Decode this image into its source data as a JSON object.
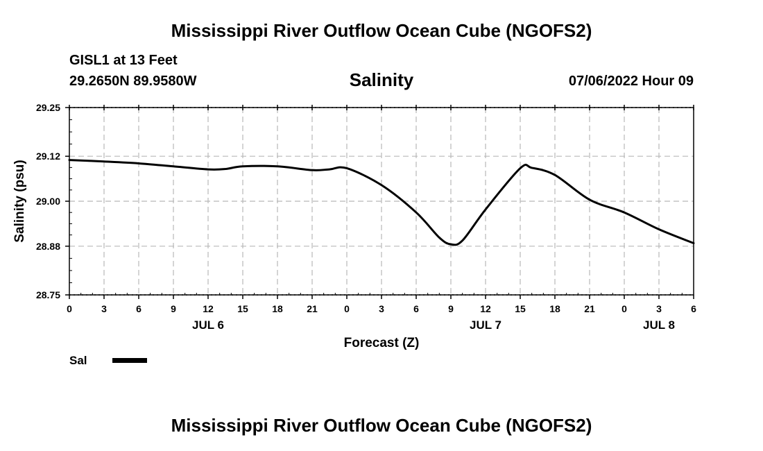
{
  "header": {
    "title": "Mississippi River Outflow Ocean Cube (NGOFS2)",
    "station": "GISL1 at 13 Feet",
    "coords": "29.2650N  89.9580W",
    "variable": "Salinity",
    "datetime": "07/06/2022 Hour 09"
  },
  "legend": {
    "label": "Sal",
    "color": "#000000"
  },
  "footer": {
    "title": "Mississippi River Outflow Ocean Cube (NGOFS2)"
  },
  "chart_data": {
    "type": "line",
    "title": "Salinity",
    "xlabel": "Forecast (Z)",
    "ylabel": "Salinity (psu)",
    "xlim": [
      0,
      54
    ],
    "ylim": [
      28.75,
      29.25
    ],
    "grid": true,
    "yticks": [
      28.75,
      28.88,
      29.0,
      29.12,
      29.25
    ],
    "ytick_labels": [
      "28.75",
      "28.88",
      "29.00",
      "29.12",
      "29.25"
    ],
    "xticks": [
      0,
      3,
      6,
      9,
      12,
      15,
      18,
      21,
      24,
      27,
      30,
      33,
      36,
      39,
      42,
      45,
      48,
      51,
      54
    ],
    "xtick_labels": [
      "0",
      "3",
      "6",
      "9",
      "12",
      "15",
      "18",
      "21",
      "0",
      "3",
      "6",
      "9",
      "12",
      "15",
      "18",
      "21",
      "0",
      "3",
      "6"
    ],
    "date_labels": [
      {
        "label": "JUL 6",
        "x": 12
      },
      {
        "label": "JUL 7",
        "x": 36
      },
      {
        "label": "JUL 8",
        "x": 51
      }
    ],
    "series": [
      {
        "name": "Sal",
        "x": [
          0,
          3,
          6,
          9,
          12,
          13.5,
          15,
          18,
          21,
          22.5,
          24,
          27,
          30,
          32,
          33,
          34,
          36,
          39,
          40,
          42,
          45,
          48,
          51,
          54
        ],
        "values": [
          29.11,
          29.106,
          29.101,
          29.093,
          29.085,
          29.086,
          29.093,
          29.093,
          29.083,
          29.085,
          29.088,
          29.043,
          28.97,
          28.903,
          28.885,
          28.895,
          28.978,
          29.088,
          29.089,
          29.07,
          29.004,
          28.97,
          28.925,
          28.888
        ]
      }
    ]
  }
}
